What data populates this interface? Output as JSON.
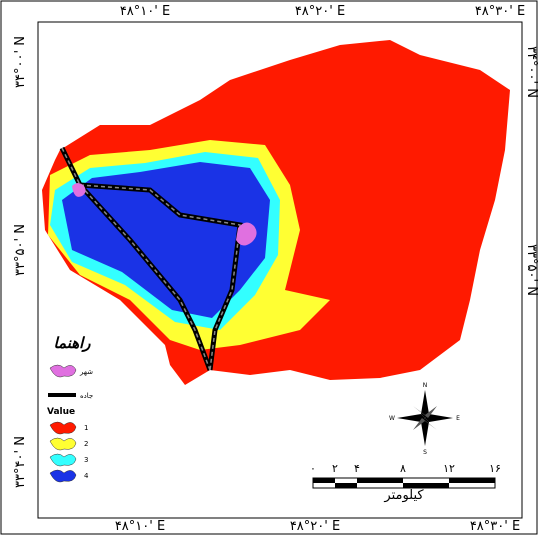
{
  "graticule": {
    "top": [
      "۴۸°۱۰' E",
      "۴۸°۲۰' E",
      "۴۸°۳۰' E"
    ],
    "bottom": [
      "۴۸°۱۰' E",
      "۴۸°۲۰' E",
      "۴۸°۳۰' E"
    ],
    "left": [
      "۳۴°۰۰' N",
      "۳۳°۵۰' N",
      "۳۳°۴۰' N"
    ],
    "right": [
      "۳۴°۰۰' N",
      "۳۳°۵۰' N"
    ]
  },
  "legend": {
    "title": "راهنما",
    "city": "شهر",
    "road": "جاده",
    "value_title": "Value",
    "classes": [
      {
        "label": "1",
        "color": "#ff1a00"
      },
      {
        "label": "2",
        "color": "#ffff33"
      },
      {
        "label": "3",
        "color": "#33ffff"
      },
      {
        "label": "4",
        "color": "#1a33e6"
      }
    ]
  },
  "compass": {
    "n": "N",
    "s": "S",
    "e": "E",
    "w": "W"
  },
  "scale_bar": {
    "ticks": [
      "۰",
      "۲",
      "۴",
      "۸",
      "۱۲",
      "۱۶"
    ],
    "unit": "کیلومتر"
  }
}
